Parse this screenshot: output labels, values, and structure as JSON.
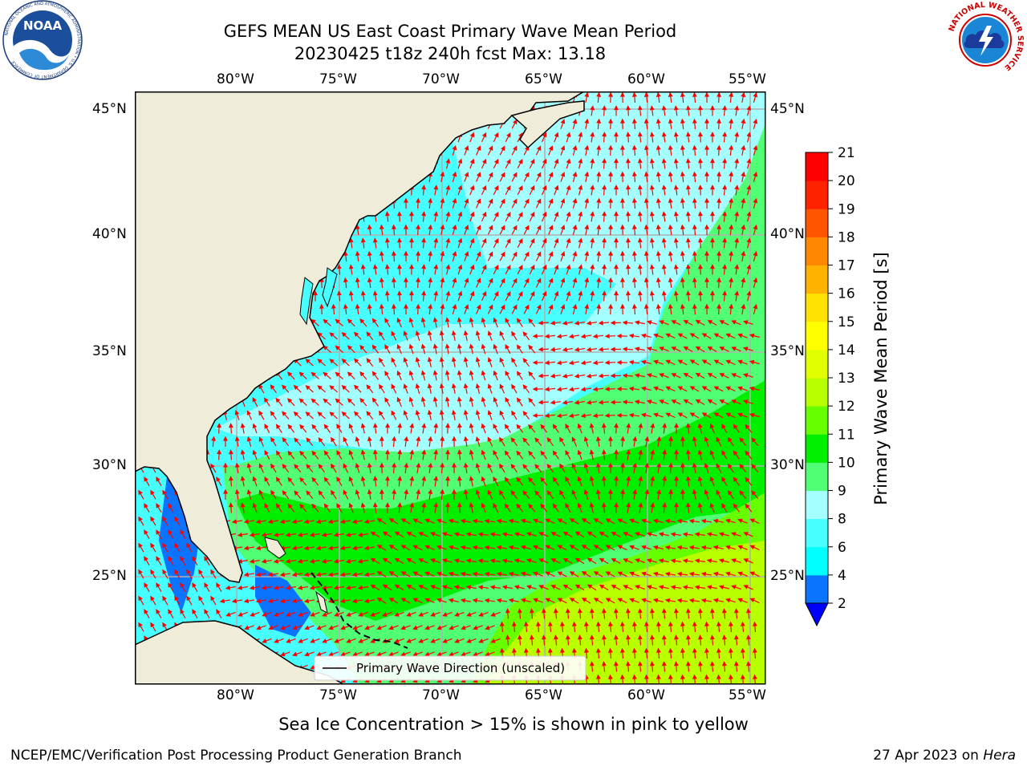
{
  "header": {
    "title_line1": "GEFS MEAN US East Coast Primary Wave Mean Period",
    "title_line2": "20230425 t18z 240h fcst   Max: 13.18"
  },
  "logos": {
    "noaa_text": "NOAA",
    "noaa_ring": "NATIONAL OCEANIC AND ATMOSPHERIC ADMINISTRATION • U.S. DEPARTMENT OF COMMERCE",
    "nws_ring": "NATIONAL WEATHER SERVICE"
  },
  "map": {
    "lon_ticks": [
      "80°W",
      "75°W",
      "70°W",
      "65°W",
      "60°W",
      "55°W"
    ],
    "lat_ticks": [
      "45°N",
      "40°N",
      "35°N",
      "30°N",
      "25°N"
    ],
    "legend_label": "Primary Wave Direction (unscaled)",
    "colors": {
      "land": "#efedda",
      "arrow": "#ff0000",
      "grid": "#b0b0b0",
      "coast": "#000000"
    }
  },
  "colorbar": {
    "label": "Primary Wave Mean Period [s]",
    "ticks": [
      "2",
      "4",
      "6",
      "8",
      "9",
      "10",
      "11",
      "12",
      "13",
      "14",
      "15",
      "16",
      "17",
      "18",
      "19",
      "20",
      "21"
    ],
    "colors": [
      "#0a73ff",
      "#00ffff",
      "#48ffff",
      "#a4ffff",
      "#51ff75",
      "#00ee00",
      "#66ff00",
      "#b8ff00",
      "#e2ff00",
      "#ffff00",
      "#ffe200",
      "#ffb300",
      "#ff8800",
      "#ff5500",
      "#ff2200",
      "#ff0000"
    ],
    "under_color": "#0000ff"
  },
  "footer": {
    "note": "Sea Ice Concentration > 15% is shown in pink to yellow",
    "left": "NCEP/EMC/Verification Post Processing Product Generation Branch",
    "right_prefix": "27 Apr 2023 on ",
    "right_machine": "Hera"
  }
}
